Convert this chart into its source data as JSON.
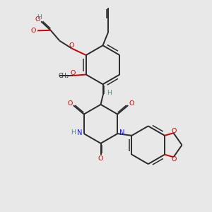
{
  "background_color": "#e8e8e8",
  "bond_color": "#2a2a2a",
  "oxygen_color": "#cc0000",
  "nitrogen_color": "#1a1aee",
  "hydrogen_color": "#4a8888",
  "figsize": [
    3.0,
    3.0
  ],
  "dpi": 100,
  "xlim": [
    0,
    10
  ],
  "ylim": [
    0,
    10
  ]
}
